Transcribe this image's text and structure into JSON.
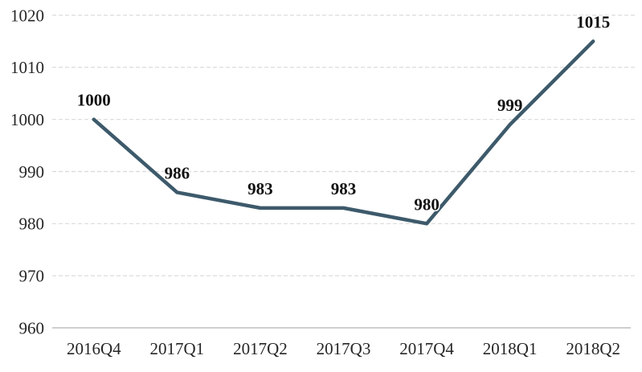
{
  "chart_data": {
    "type": "line",
    "categories": [
      "2016Q4",
      "2017Q1",
      "2017Q2",
      "2017Q3",
      "2017Q4",
      "2018Q1",
      "2018Q2"
    ],
    "values": [
      1000,
      986,
      983,
      983,
      980,
      999,
      1015
    ],
    "data_labels": [
      "1000",
      "986",
      "983",
      "983",
      "980",
      "999",
      "1015"
    ],
    "title": "",
    "xlabel": "",
    "ylabel": "",
    "ylim": [
      960,
      1020
    ],
    "yticks": [
      960,
      970,
      980,
      990,
      1000,
      1010,
      1020
    ],
    "grid": "horizontal-dashed",
    "legend": "none",
    "colors": {
      "line": "#3D5A6B",
      "gridline": "#D9D9D9",
      "axis_line": "#BFBFBF",
      "tick_label": "#262626",
      "data_label": "#111111",
      "background": "#FFFFFF"
    }
  }
}
